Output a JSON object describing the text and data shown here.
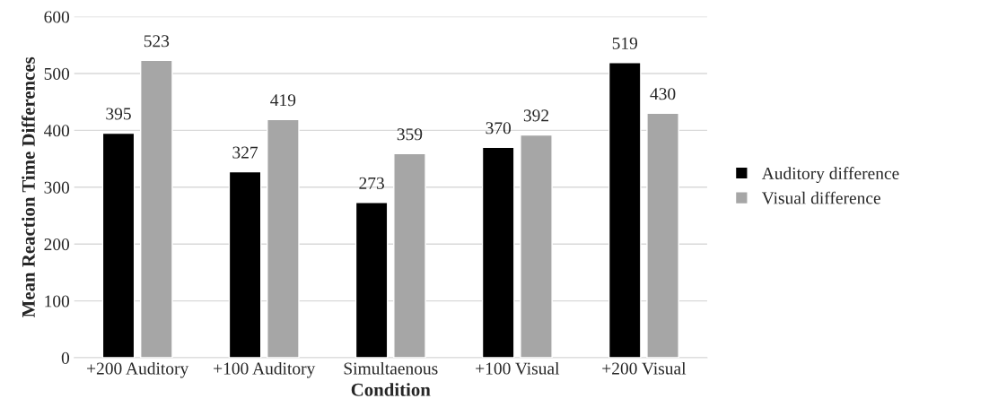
{
  "chart_data": {
    "type": "bar",
    "xlabel": "Condition",
    "ylabel": "Mean Reaction Time Differences",
    "categories": [
      "+200 Auditory",
      "+100 Auditory",
      "Simultaenous",
      "+100 Visual",
      "+200 Visual"
    ],
    "series": [
      {
        "name": "Auditory difference",
        "color": "#000000",
        "values": [
          395,
          327,
          273,
          370,
          519
        ]
      },
      {
        "name": "Visual difference",
        "color": "#a6a6a6",
        "values": [
          523,
          419,
          359,
          392,
          430
        ]
      }
    ],
    "ylim": [
      0,
      600
    ],
    "yticks": [
      0,
      100,
      200,
      300,
      400,
      500,
      600
    ],
    "grid": "y",
    "legend": "right",
    "data_labels": true
  }
}
